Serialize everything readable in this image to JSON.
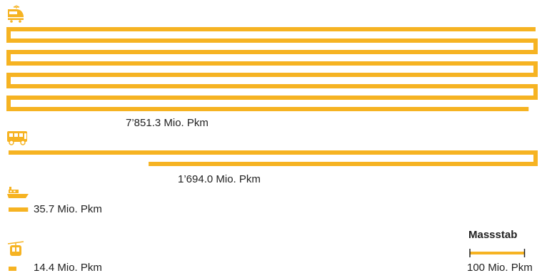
{
  "chart_data": {
    "type": "bar",
    "unit": "Mio. Pkm",
    "accent_color": "#F6B322",
    "icon_color": "#F6B322",
    "series": [
      {
        "icon": "train-icon",
        "value": 7851.3,
        "label": "7’851.3 Mio. Pkm"
      },
      {
        "icon": "bus-icon",
        "value": 1694.0,
        "label": "1’694.0 Mio. Pkm"
      },
      {
        "icon": "ship-icon",
        "value": 35.7,
        "label": "35.7 Mio. Pkm"
      },
      {
        "icon": "cable-car-icon",
        "value": 14.4,
        "label": "14.4 Mio. Pkm"
      }
    ],
    "scale": {
      "title": "Massstab",
      "value": 100,
      "label": "100 Mio. Pkm"
    }
  }
}
